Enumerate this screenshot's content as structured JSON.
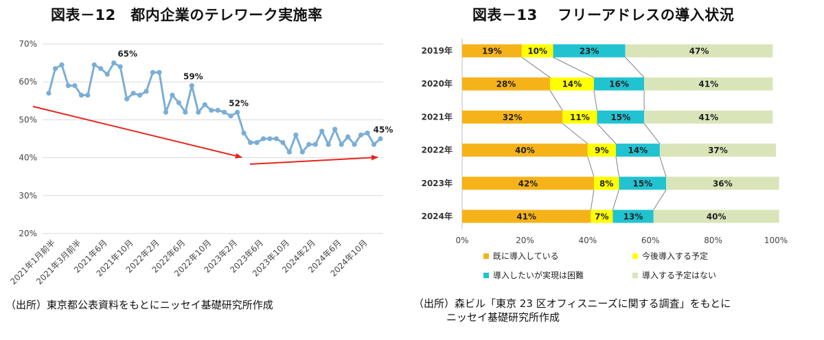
{
  "chart_data": [
    {
      "type": "line",
      "title": "図表－12　都内企業のテレワーク実施率",
      "ylim": [
        0.2,
        0.7
      ],
      "y_ticks": [
        "20%",
        "30%",
        "40%",
        "50%",
        "60%",
        "70%"
      ],
      "x_tick_labels": [
        "2021年1月前半",
        "2021年3月前半",
        "2021年6月",
        "2021年10月",
        "2022年2月",
        "2022年6月",
        "2022年10月",
        "2023年2月",
        "2023年6月",
        "2023年10月",
        "2024年2月",
        "2024年6月",
        "2024年10月"
      ],
      "series": [
        {
          "values": [
            0.57,
            0.635,
            0.645,
            0.59,
            0.59,
            0.565,
            0.565,
            0.645,
            0.635,
            0.62,
            0.65,
            0.64,
            0.555,
            0.57,
            0.565,
            0.575,
            0.625,
            0.625,
            0.52,
            0.565,
            0.545,
            0.52,
            0.59,
            0.52,
            0.54,
            0.525,
            0.525,
            0.52,
            0.51,
            0.52,
            0.465,
            0.44,
            0.44,
            0.45,
            0.45,
            0.45,
            0.44,
            0.415,
            0.46,
            0.415,
            0.435,
            0.435,
            0.47,
            0.435,
            0.475,
            0.435,
            0.455,
            0.435,
            0.46,
            0.465,
            0.435,
            0.45
          ]
        }
      ],
      "annotations": [
        "65%",
        "59%",
        "52%",
        "45%"
      ],
      "colors": {
        "line": "#7aaed6",
        "arrow": "#e8231b"
      }
    },
    {
      "type": "bar",
      "stacked": true,
      "orientation": "horizontal",
      "title": "図表－13　 フリーアドレスの導入状況",
      "categories": [
        "2019年",
        "2020年",
        "2021年",
        "2022年",
        "2023年",
        "2024年"
      ],
      "series": [
        {
          "name": "既に導入している",
          "values": [
            19,
            28,
            32,
            40,
            42,
            41
          ],
          "color": "#f6b319"
        },
        {
          "name": "今後導入する予定",
          "values": [
            10,
            14,
            11,
            9,
            8,
            7
          ],
          "color": "#ffff00"
        },
        {
          "name": "導入したいが実現は困難",
          "values": [
            23,
            16,
            15,
            14,
            15,
            13
          ],
          "color": "#21c3d1"
        },
        {
          "name": "導入する予定はない",
          "values": [
            47,
            41,
            41,
            37,
            36,
            40
          ],
          "color": "#d9e5b9"
        }
      ],
      "x_ticks": [
        "0%",
        "20%",
        "40%",
        "60%",
        "80%",
        "100%"
      ],
      "xlim": [
        0,
        100
      ],
      "legend_position": "bottom"
    }
  ],
  "sources": {
    "left": "（出所）東京都公表資料をもとにニッセイ基礎研究所作成",
    "right_line1": "（出所）森ビル「東京 23 区オフィスニーズに関する調査」をもとに",
    "right_line2": "ニッセイ基礎研究所作成"
  }
}
